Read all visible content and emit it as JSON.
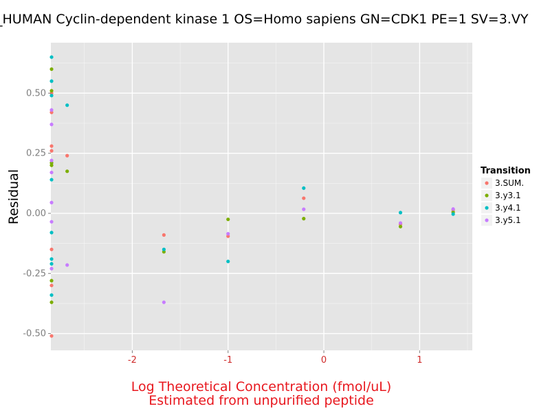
{
  "chart_data": {
    "type": "scatter",
    "title": "_HUMAN Cyclin-dependent kinase 1 OS=Homo sapiens GN=CDK1 PE=1 SV=3.VY",
    "xlabel_line1": "Log Theoretical Concentration (fmol/uL)",
    "xlabel_line2": "Estimated from unpurified peptide",
    "ylabel": "Residual",
    "xlim": [
      -2.85,
      1.55
    ],
    "ylim": [
      -0.57,
      0.71
    ],
    "xticks": [
      -2,
      -1,
      0,
      1
    ],
    "xtick_labels": [
      "-2",
      "-1",
      "0",
      "1"
    ],
    "yticks": [
      -0.5,
      -0.25,
      0,
      0.25,
      0.5
    ],
    "ytick_labels": [
      "-0.50",
      "-0.25",
      "0.00",
      "0.25",
      "0.50"
    ],
    "grid": true,
    "legend_position": "right",
    "legend_title": "Transition",
    "background_color": "#e5e5e5",
    "grid_color": "#ffffff",
    "series": [
      {
        "name": "3.SUM.",
        "color": "#f8766d",
        "points": [
          {
            "x": -2.85,
            "y": 0.5
          },
          {
            "x": -2.85,
            "y": 0.42
          },
          {
            "x": -2.85,
            "y": 0.28
          },
          {
            "x": -2.85,
            "y": 0.26
          },
          {
            "x": -2.85,
            "y": -0.15
          },
          {
            "x": -2.85,
            "y": -0.3
          },
          {
            "x": -2.85,
            "y": -0.51
          },
          {
            "x": -2.68,
            "y": 0.24
          },
          {
            "x": -1.67,
            "y": -0.09
          },
          {
            "x": -1.0,
            "y": -0.095
          },
          {
            "x": -0.21,
            "y": 0.063
          },
          {
            "x": 0.8,
            "y": -0.045
          },
          {
            "x": 1.35,
            "y": 0.015
          }
        ]
      },
      {
        "name": "3.y3.1",
        "color": "#7cae00",
        "points": [
          {
            "x": -2.85,
            "y": 0.6
          },
          {
            "x": -2.85,
            "y": 0.51
          },
          {
            "x": -2.85,
            "y": 0.21
          },
          {
            "x": -2.85,
            "y": 0.2
          },
          {
            "x": -2.85,
            "y": -0.28
          },
          {
            "x": -2.85,
            "y": -0.37
          },
          {
            "x": -2.68,
            "y": 0.175
          },
          {
            "x": -1.67,
            "y": -0.16
          },
          {
            "x": -1.0,
            "y": -0.025
          },
          {
            "x": -0.21,
            "y": -0.022
          },
          {
            "x": 0.8,
            "y": -0.055
          },
          {
            "x": 1.35,
            "y": 0.005
          }
        ]
      },
      {
        "name": "3.y4.1",
        "color": "#00bfc4",
        "points": [
          {
            "x": -2.85,
            "y": 0.65
          },
          {
            "x": -2.85,
            "y": 0.55
          },
          {
            "x": -2.85,
            "y": 0.49
          },
          {
            "x": -2.85,
            "y": 0.14
          },
          {
            "x": -2.85,
            "y": -0.08
          },
          {
            "x": -2.85,
            "y": -0.19
          },
          {
            "x": -2.85,
            "y": -0.21
          },
          {
            "x": -2.85,
            "y": -0.34
          },
          {
            "x": -2.68,
            "y": 0.45
          },
          {
            "x": -1.67,
            "y": -0.15
          },
          {
            "x": -1.0,
            "y": -0.2
          },
          {
            "x": -0.21,
            "y": 0.105
          },
          {
            "x": 0.8,
            "y": 0.003
          },
          {
            "x": 1.35,
            "y": -0.003
          }
        ]
      },
      {
        "name": "3.y5.1",
        "color": "#c77cff",
        "points": [
          {
            "x": -2.85,
            "y": 0.43
          },
          {
            "x": -2.85,
            "y": 0.37
          },
          {
            "x": -2.85,
            "y": 0.22
          },
          {
            "x": -2.85,
            "y": 0.17
          },
          {
            "x": -2.85,
            "y": 0.045
          },
          {
            "x": -2.85,
            "y": -0.035
          },
          {
            "x": -2.85,
            "y": -0.23
          },
          {
            "x": -2.68,
            "y": -0.215
          },
          {
            "x": -1.67,
            "y": -0.37
          },
          {
            "x": -1.0,
            "y": -0.085
          },
          {
            "x": -0.21,
            "y": 0.017
          },
          {
            "x": 0.8,
            "y": -0.04
          },
          {
            "x": 1.35,
            "y": 0.018
          }
        ]
      }
    ]
  }
}
